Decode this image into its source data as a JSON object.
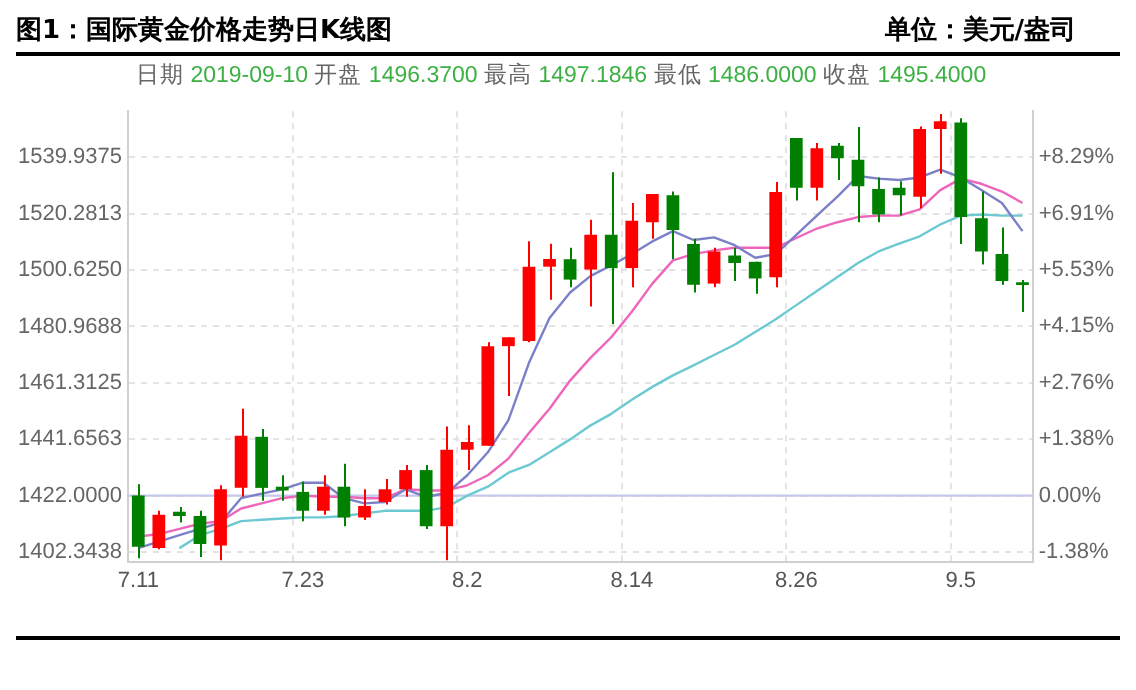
{
  "chart_data": {
    "type": "candlestick",
    "title": "图1：国际黄金价格走势日K线图",
    "subtitle": "单位：美元/盎司",
    "annotations": [
      "日期 2019-09-10 开盘 1496.3700 最高 1497.1846 最低 1486.0000 收盘 1495.4000"
    ],
    "categories": [
      "7.11",
      null,
      null,
      null,
      null,
      null,
      null,
      null,
      "7.23",
      null,
      null,
      null,
      null,
      null,
      null,
      null,
      "8.2",
      null,
      null,
      null,
      null,
      null,
      null,
      null,
      "8.14",
      null,
      null,
      null,
      null,
      null,
      null,
      null,
      "8.26",
      null,
      null,
      null,
      null,
      null,
      null,
      null,
      "9.5",
      null,
      null,
      null
    ],
    "ohlc": [
      [
        1422.0,
        1426.0,
        1400.2,
        1404.2
      ],
      [
        1403.7,
        1416.7,
        1403.3,
        1415.3
      ],
      [
        1416.4,
        1418.0,
        1412.6,
        1414.9
      ],
      [
        1414.9,
        1416.7,
        1400.6,
        1405.1
      ],
      [
        1404.6,
        1425.6,
        1399.5,
        1424.2
      ],
      [
        1424.7,
        1452.3,
        1421.6,
        1442.9
      ],
      [
        1442.5,
        1445.2,
        1420.2,
        1424.7
      ],
      [
        1425.1,
        1429.1,
        1420.2,
        1423.8
      ],
      [
        1423.3,
        1426.9,
        1413.1,
        1416.7
      ],
      [
        1416.7,
        1429.1,
        1415.3,
        1425.1
      ],
      [
        1425.1,
        1433.1,
        1411.3,
        1414.4
      ],
      [
        1414.4,
        1424.2,
        1413.5,
        1418.4
      ],
      [
        1419.8,
        1427.8,
        1418.9,
        1424.2
      ],
      [
        1424.2,
        1432.7,
        1421.6,
        1430.9
      ],
      [
        1430.9,
        1432.7,
        1410.4,
        1411.3
      ],
      [
        1411.3,
        1446.1,
        1399.5,
        1438.0
      ],
      [
        1438.0,
        1446.5,
        1430.9,
        1440.7
      ],
      [
        1439.4,
        1475.5,
        1439.4,
        1474.1
      ],
      [
        1474.1,
        1477.2,
        1456.7,
        1477.2
      ],
      [
        1475.9,
        1510.7,
        1475.5,
        1501.8
      ],
      [
        1501.8,
        1509.8,
        1490.3,
        1504.5
      ],
      [
        1504.4,
        1508.4,
        1494.6,
        1497.3
      ],
      [
        1500.8,
        1518.2,
        1487.9,
        1512.9
      ],
      [
        1512.9,
        1534.7,
        1481.7,
        1501.3
      ],
      [
        1501.3,
        1524.0,
        1494.6,
        1517.8
      ],
      [
        1517.3,
        1527.1,
        1511.5,
        1527.1
      ],
      [
        1526.7,
        1528.0,
        1504.4,
        1514.6
      ],
      [
        1509.7,
        1511.5,
        1492.8,
        1495.5
      ],
      [
        1495.9,
        1508.4,
        1494.6,
        1507.1
      ],
      [
        1505.7,
        1508.4,
        1496.8,
        1503.1
      ],
      [
        1503.5,
        1503.5,
        1492.4,
        1497.7
      ],
      [
        1498.1,
        1531.3,
        1494.6,
        1527.8
      ],
      [
        1546.7,
        1546.7,
        1524.9,
        1529.3
      ],
      [
        1529.3,
        1544.9,
        1524.9,
        1543.1
      ],
      [
        1544.0,
        1544.9,
        1532.0,
        1539.6
      ],
      [
        1539.1,
        1550.5,
        1517.3,
        1529.8
      ],
      [
        1528.9,
        1532.9,
        1517.3,
        1520.0
      ],
      [
        1529.3,
        1531.6,
        1519.6,
        1526.7
      ],
      [
        1526.2,
        1550.7,
        1522.2,
        1549.8
      ],
      [
        1549.8,
        1555.0,
        1534.2,
        1552.5
      ],
      [
        1552.1,
        1553.5,
        1509.7,
        1519.1
      ],
      [
        1518.7,
        1528.0,
        1502.6,
        1507.1
      ],
      [
        1506.2,
        1515.5,
        1495.5,
        1496.8
      ],
      [
        1496.37,
        1497.1846,
        1486.0,
        1495.4
      ]
    ],
    "colors": [
      "#008000",
      "#ff0000",
      "#008000",
      "#008000",
      "#ff0000",
      "#ff0000",
      "#008000",
      "#008000",
      "#008000",
      "#ff0000",
      "#008000",
      "#ff0000",
      "#ff0000",
      "#ff0000",
      "#008000",
      "#ff0000",
      "#ff0000",
      "#ff0000",
      "#ff0000",
      "#ff0000",
      "#ff0000",
      "#008000",
      "#ff0000",
      "#008000",
      "#ff0000",
      "#ff0000",
      "#008000",
      "#008000",
      "#ff0000",
      "#008000",
      "#008000",
      "#ff0000",
      "#008000",
      "#ff0000",
      "#008000",
      "#008000",
      "#008000",
      "#008000",
      "#ff0000",
      "#ff0000",
      "#008000",
      "#008000",
      "#008000",
      "#008000"
    ],
    "series": [
      {
        "type": "line",
        "color": "#7b80c8",
        "values": [
          1403.7,
          1406.0,
          1408.2,
          1410.4,
          1412.6,
          1421.1,
          1422.7,
          1424.2,
          1426.5,
          1426.5,
          1421.1,
          1419.3,
          1419.8,
          1424.2,
          1421.6,
          1422.9,
          1429.1,
          1437.1,
          1448.3,
          1468.3,
          1483.9,
          1492.8,
          1498.6,
          1502.2,
          1506.2,
          1510.6,
          1514.2,
          1511.1,
          1512.0,
          1509.3,
          1504.9,
          1506.2,
          1512.9,
          1519.6,
          1526.2,
          1533.4,
          1532.5,
          1532.0,
          1532.9,
          1535.6,
          1532.9,
          1528.5,
          1524.0,
          1514.2
        ]
      },
      {
        "type": "line",
        "color": "#ee66bb",
        "values": [
          1407.7,
          1408.6,
          1410.4,
          1412.2,
          1413.1,
          1417.5,
          1419.3,
          1421.1,
          1422.0,
          1421.6,
          1421.6,
          1421.1,
          1421.1,
          1424.2,
          1423.8,
          1423.8,
          1425.6,
          1429.1,
          1434.9,
          1443.8,
          1452.3,
          1462.1,
          1470.1,
          1477.2,
          1486.1,
          1495.9,
          1504.0,
          1506.2,
          1507.5,
          1508.4,
          1508.4,
          1508.4,
          1511.8,
          1515.1,
          1517.3,
          1519.1,
          1519.6,
          1519.6,
          1521.8,
          1528.5,
          1532.5,
          1530.7,
          1528.0,
          1524.0
        ]
      },
      {
        "type": "line",
        "color": "#6cc9d2",
        "values": [
          null,
          null,
          1403.7,
          1408.2,
          1410.4,
          1413.1,
          1413.6,
          1414.0,
          1414.4,
          1414.4,
          1414.9,
          1415.8,
          1416.7,
          1416.7,
          1416.7,
          1418.0,
          1422.0,
          1425.1,
          1430.0,
          1432.7,
          1437.1,
          1441.6,
          1446.5,
          1450.5,
          1455.4,
          1459.9,
          1463.9,
          1467.4,
          1471.0,
          1474.6,
          1479.0,
          1483.5,
          1488.4,
          1493.3,
          1498.2,
          1503.1,
          1507.1,
          1509.8,
          1512.4,
          1516.5,
          1519.6,
          1520.0,
          1519.6,
          1519.6
        ]
      }
    ],
    "ylim": [
      1399,
      1556
    ],
    "yticks": [
      {
        "value": 1402.3438,
        "label": "1402.3438"
      },
      {
        "value": 1422,
        "label": "1422.0000"
      },
      {
        "value": 1441.6563,
        "label": "1441.6563"
      },
      {
        "value": 1461.3125,
        "label": "1461.3125"
      },
      {
        "value": 1480.9688,
        "label": "1480.9688"
      },
      {
        "value": 1500.625,
        "label": "1500.6250"
      },
      {
        "value": 1520.2813,
        "label": "1520.2813"
      },
      {
        "value": 1539.9375,
        "label": "1539.9375"
      }
    ],
    "y2lim": [
      -1.617,
      9.423
    ],
    "y2ticks": [
      {
        "value": -1.38,
        "label": "-1.38%"
      },
      {
        "value": 0,
        "label": "0.00%"
      },
      {
        "value": 1.38,
        "label": "+1.38%"
      },
      {
        "value": 2.76,
        "label": "+2.76%"
      },
      {
        "value": 4.15,
        "label": "+4.15%"
      },
      {
        "value": 5.53,
        "label": "+5.53%"
      },
      {
        "value": 6.91,
        "label": "+6.91%"
      },
      {
        "value": 8.29,
        "label": "+8.29%"
      }
    ],
    "ref_lines": [
      {
        "axis": "y",
        "value": 1422,
        "color": "#c5c8ea"
      }
    ],
    "grid": true,
    "legend": false
  }
}
